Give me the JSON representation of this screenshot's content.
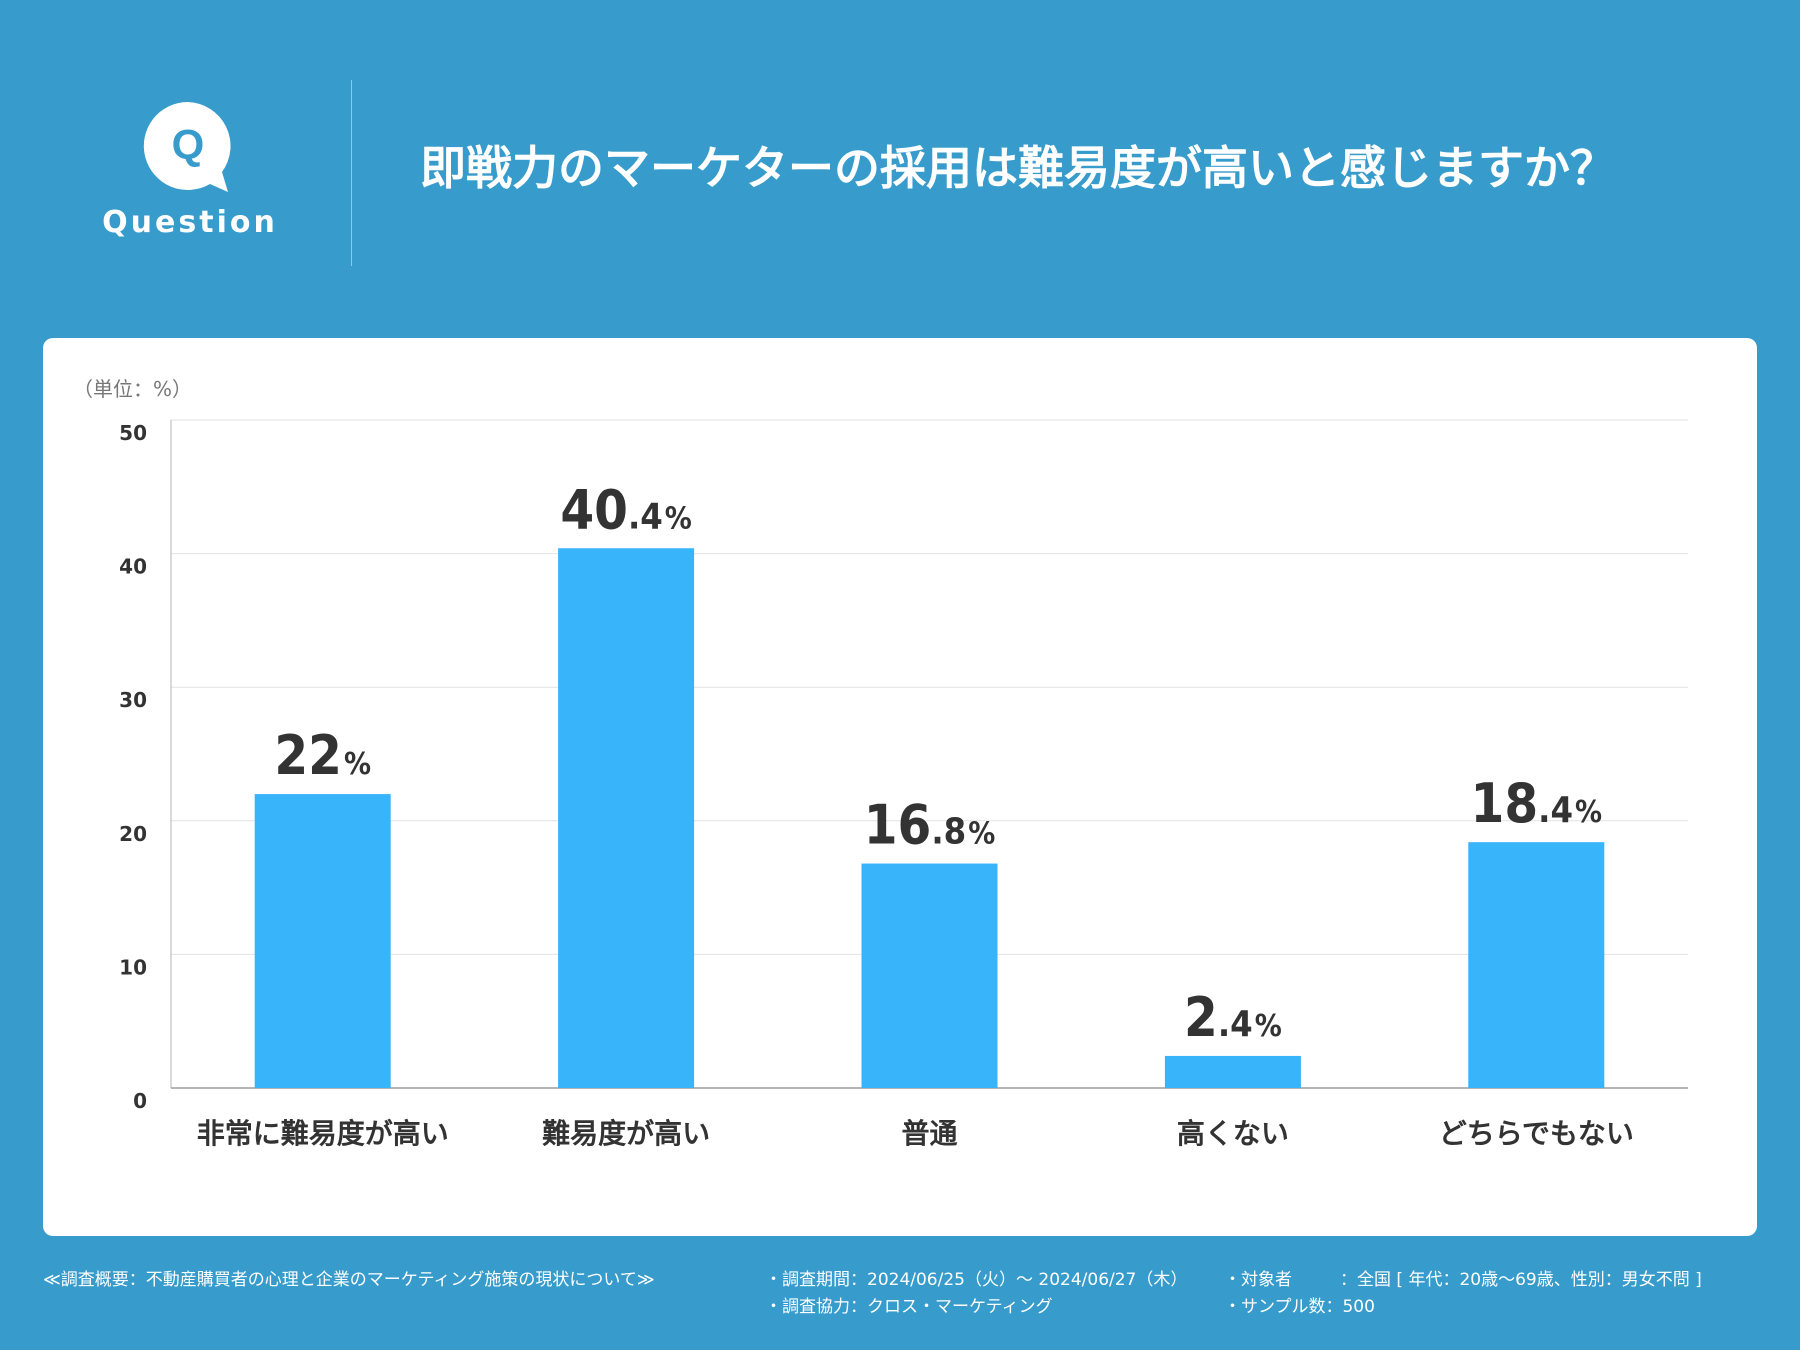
{
  "header": {
    "q_letter": "Q",
    "q_label": "Question",
    "title": "即戦力のマーケターの採用は難易度が高いと感じますか？"
  },
  "chart_data": {
    "type": "bar",
    "unit_label": "（単位：%）",
    "categories": [
      "非常に難易度が高い",
      "難易度が高い",
      "普通",
      "高くない",
      "どちらでもない"
    ],
    "values": [
      22,
      40.4,
      16.8,
      2.4,
      18.4
    ],
    "data_labels": [
      {
        "main": "22",
        "decimal": "",
        "pct": "%"
      },
      {
        "main": "40",
        "decimal": ".4",
        "pct": "%"
      },
      {
        "main": "16",
        "decimal": ".8",
        "pct": "%"
      },
      {
        "main": "2",
        "decimal": ".4",
        "pct": "%"
      },
      {
        "main": "18",
        "decimal": ".4",
        "pct": "%"
      }
    ],
    "yticks": [
      0,
      10,
      20,
      30,
      40,
      50
    ],
    "ylim": [
      0,
      50
    ],
    "grid": true,
    "bar_color": "#38b4fb",
    "label_color": "#333333"
  },
  "footer": {
    "summary": "≪調査概要：不動産購買者の心理と企業のマーケティング施策の現状について≫",
    "period": "・調査期間：2024/06/25（火）〜 2024/06/27（木）",
    "cooperation": "・調査協力：クロス・マーケティング",
    "target_label": "・対象者",
    "target_value": "：全国 [ 年代：20歳〜69歳、性別：男女不問 ]",
    "sample": "・サンプル数：500"
  },
  "colors": {
    "background": "#379ccc",
    "panel": "#ffffff"
  }
}
